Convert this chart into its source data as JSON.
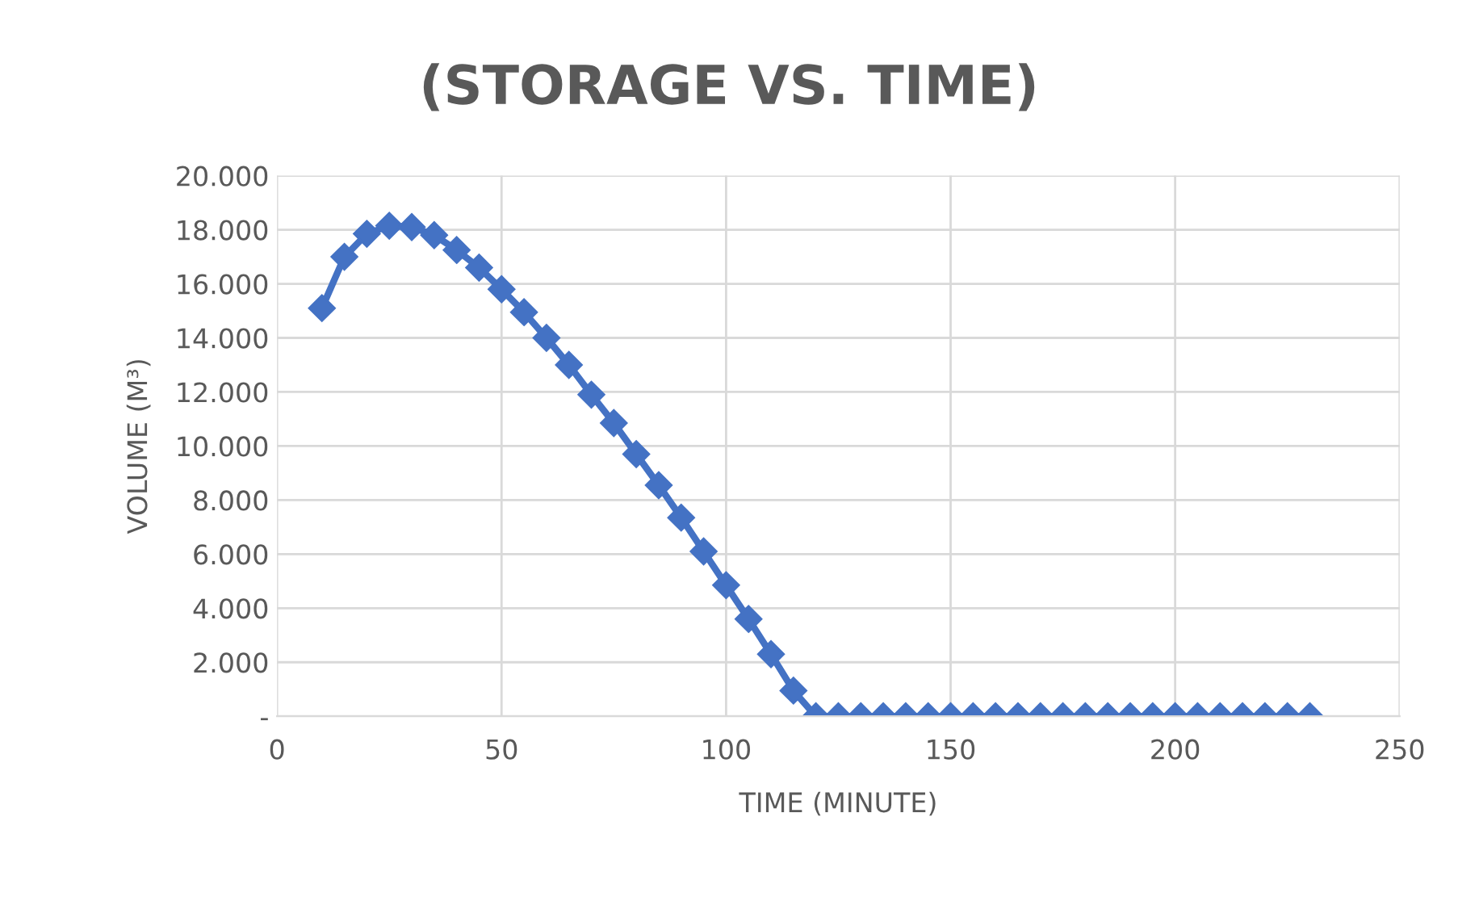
{
  "chart_data": {
    "type": "line",
    "title": "(STORAGE VS. TIME)",
    "xlabel": "TIME (MINUTE)",
    "ylabel": "VOLUME (M³)",
    "x": [
      10,
      15,
      20,
      25,
      30,
      35,
      40,
      45,
      50,
      55,
      60,
      65,
      70,
      75,
      80,
      85,
      90,
      95,
      100,
      105,
      110,
      115,
      120,
      125,
      130,
      135,
      140,
      145,
      150,
      155,
      160,
      165,
      170,
      175,
      180,
      185,
      190,
      195,
      200,
      205,
      210,
      215,
      220,
      225,
      230
    ],
    "series": [
      {
        "color": "#4472c4",
        "values": [
          15100,
          17000,
          17850,
          18150,
          18100,
          17800,
          17250,
          16600,
          15800,
          14950,
          14000,
          13000,
          11900,
          10850,
          9700,
          8550,
          7350,
          6100,
          4850,
          3600,
          2300,
          950,
          0,
          0,
          0,
          0,
          0,
          0,
          0,
          0,
          0,
          0,
          0,
          0,
          0,
          0,
          0,
          0,
          0,
          0,
          0,
          0,
          0,
          0,
          0
        ]
      }
    ],
    "xlim": [
      0,
      250
    ],
    "xticks": [
      0,
      50,
      100,
      150,
      200,
      250
    ],
    "ylim": [
      0,
      20000
    ],
    "yticks": [
      {
        "value": 0,
        "label": "-"
      },
      {
        "value": 2000,
        "label": "2.000"
      },
      {
        "value": 4000,
        "label": "4.000"
      },
      {
        "value": 6000,
        "label": "6.000"
      },
      {
        "value": 8000,
        "label": "8.000"
      },
      {
        "value": 10000,
        "label": "10.000"
      },
      {
        "value": 12000,
        "label": "12.000"
      },
      {
        "value": 14000,
        "label": "14.000"
      },
      {
        "value": 16000,
        "label": "16.000"
      },
      {
        "value": 18000,
        "label": "18.000"
      },
      {
        "value": 20000,
        "label": "20.000"
      }
    ],
    "grid": true,
    "marker": "diamond",
    "line_style": "solid",
    "legend": false
  }
}
